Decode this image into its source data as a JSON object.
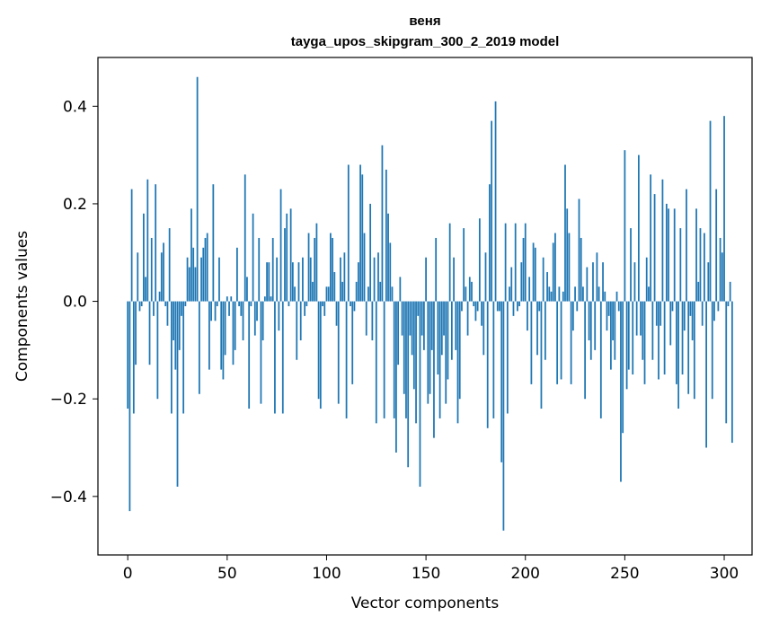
{
  "chart_data": {
    "type": "bar",
    "title": "веня",
    "subtitle": "tayga_upos_skipgram_300_2_2019 model",
    "xlabel": "Vector components",
    "ylabel": "Components values",
    "xlim": [
      -15,
      314
    ],
    "ylim": [
      -0.52,
      0.5
    ],
    "xticks": [
      0,
      50,
      100,
      150,
      200,
      250,
      300
    ],
    "yticks": [
      -0.4,
      -0.2,
      0.0,
      0.2,
      0.4
    ],
    "ytick_labels": [
      "−0.4",
      "−0.2",
      "0.0",
      "0.2",
      "0.4"
    ],
    "bar_color": "#1f77b4",
    "values": [
      -0.22,
      -0.43,
      0.23,
      -0.23,
      -0.13,
      0.1,
      -0.02,
      -0.01,
      0.18,
      0.05,
      0.25,
      -0.13,
      0.13,
      -0.03,
      0.24,
      -0.2,
      0.02,
      0.1,
      0.12,
      -0.01,
      -0.05,
      0.15,
      -0.23,
      -0.08,
      -0.14,
      -0.38,
      -0.1,
      -0.03,
      -0.23,
      -0.01,
      0.09,
      0.07,
      0.19,
      0.11,
      0.07,
      0.46,
      -0.19,
      0.09,
      0.11,
      0.13,
      0.14,
      -0.14,
      -0.04,
      0.24,
      -0.04,
      -0.01,
      0.09,
      -0.14,
      -0.16,
      -0.11,
      0.01,
      -0.03,
      0.01,
      -0.13,
      -0.1,
      0.11,
      -0.01,
      -0.03,
      -0.08,
      0.26,
      0.05,
      -0.22,
      -0.01,
      0.18,
      -0.07,
      -0.04,
      0.13,
      -0.21,
      -0.08,
      0.01,
      0.08,
      0.08,
      0.01,
      0.13,
      -0.23,
      0.09,
      -0.06,
      0.23,
      -0.23,
      0.15,
      0.18,
      -0.01,
      0.19,
      0.08,
      0.03,
      -0.12,
      0.08,
      -0.08,
      0.09,
      -0.03,
      -0.01,
      0.14,
      0.09,
      0.04,
      0.13,
      0.16,
      -0.2,
      -0.22,
      -0.01,
      -0.03,
      0.03,
      0.03,
      0.14,
      0.13,
      0.06,
      -0.05,
      -0.21,
      0.09,
      0.04,
      0.1,
      -0.24,
      0.28,
      -0.01,
      -0.17,
      -0.02,
      0.04,
      0.08,
      0.28,
      0.26,
      0.14,
      -0.07,
      0.03,
      0.2,
      -0.08,
      0.09,
      -0.25,
      0.1,
      0.04,
      0.32,
      -0.24,
      0.27,
      0.18,
      0.12,
      0.03,
      -0.24,
      -0.31,
      -0.13,
      0.05,
      -0.07,
      -0.19,
      -0.24,
      -0.34,
      -0.07,
      -0.11,
      -0.18,
      -0.25,
      -0.03,
      -0.38,
      -0.07,
      -0.1,
      0.09,
      -0.21,
      -0.19,
      -0.1,
      -0.28,
      0.13,
      -0.15,
      -0.24,
      -0.11,
      -0.07,
      -0.21,
      -0.16,
      0.16,
      -0.12,
      0.09,
      -0.1,
      -0.25,
      -0.2,
      -0.02,
      0.15,
      0.03,
      -0.07,
      0.05,
      0.04,
      -0.01,
      -0.04,
      -0.02,
      0.17,
      -0.05,
      -0.11,
      0.1,
      -0.26,
      0.24,
      0.37,
      -0.24,
      0.41,
      -0.02,
      -0.02,
      -0.33,
      -0.47,
      0.16,
      -0.23,
      0.03,
      0.07,
      -0.03,
      0.16,
      -0.02,
      -0.01,
      0.08,
      0.13,
      0.16,
      -0.06,
      0.05,
      -0.17,
      0.12,
      0.11,
      -0.11,
      -0.02,
      -0.22,
      0.09,
      -0.12,
      0.06,
      0.03,
      0.02,
      0.12,
      0.14,
      -0.17,
      0.03,
      -0.16,
      0.02,
      0.28,
      0.19,
      0.14,
      -0.17,
      -0.06,
      0.03,
      -0.02,
      0.21,
      0.13,
      0.03,
      -0.2,
      0.07,
      -0.08,
      -0.12,
      0.08,
      -0.1,
      0.1,
      0.03,
      -0.24,
      0.08,
      0.02,
      -0.06,
      -0.03,
      -0.14,
      -0.08,
      -0.12,
      0.02,
      -0.02,
      -0.37,
      -0.27,
      0.31,
      -0.18,
      -0.14,
      0.15,
      -0.15,
      0.08,
      -0.07,
      0.3,
      -0.07,
      -0.12,
      -0.17,
      0.09,
      0.03,
      0.26,
      -0.12,
      0.22,
      -0.05,
      -0.16,
      -0.05,
      0.25,
      -0.15,
      0.2,
      0.19,
      -0.09,
      -0.02,
      0.19,
      -0.17,
      -0.22,
      0.15,
      -0.15,
      -0.06,
      0.23,
      -0.19,
      -0.03,
      -0.08,
      -0.2,
      0.19,
      0.04,
      0.15,
      -0.05,
      0.14,
      -0.3,
      0.08,
      0.37,
      -0.2,
      -0.04,
      0.23,
      -0.02,
      0.13,
      0.1,
      0.38,
      -0.25,
      -0.01,
      0.04,
      -0.29
    ]
  }
}
